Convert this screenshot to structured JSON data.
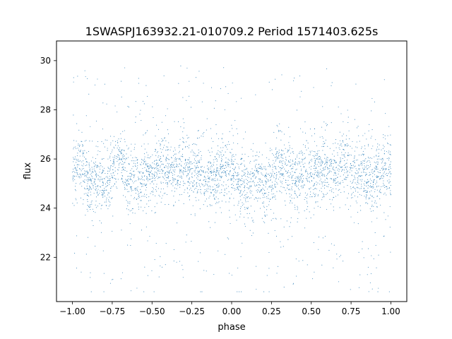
{
  "chart_data": {
    "type": "scatter",
    "title": "1SWASPJ163932.21-010709.2 Period 1571403.625s",
    "xlabel": "phase",
    "ylabel": "flux",
    "xlim": [
      -1.1,
      1.1
    ],
    "ylim": [
      20.2,
      30.8
    ],
    "xticks": [
      -1.0,
      -0.75,
      -0.5,
      -0.25,
      0.0,
      0.25,
      0.5,
      0.75,
      1.0
    ],
    "xtick_labels": [
      "−1.00",
      "−0.75",
      "−0.50",
      "−0.25",
      "0.00",
      "0.25",
      "0.50",
      "0.75",
      "1.00"
    ],
    "yticks": [
      22,
      24,
      26,
      28,
      30
    ],
    "ytick_labels": [
      "22",
      "24",
      "26",
      "28",
      "30"
    ],
    "grid": false,
    "legend": "none",
    "point_color": "#1f77b4",
    "phase_range": [
      -1.0,
      1.0
    ],
    "flux_trend": [
      {
        "phase": -1.0,
        "flux": 25.6
      },
      {
        "phase": -0.95,
        "flux": 25.9
      },
      {
        "phase": -0.9,
        "flux": 25.0
      },
      {
        "phase": -0.85,
        "flux": 25.3
      },
      {
        "phase": -0.8,
        "flux": 24.8
      },
      {
        "phase": -0.75,
        "flux": 25.5
      },
      {
        "phase": -0.7,
        "flux": 26.0
      },
      {
        "phase": -0.65,
        "flux": 25.2
      },
      {
        "phase": -0.6,
        "flux": 25.0
      },
      {
        "phase": -0.55,
        "flux": 25.4
      },
      {
        "phase": -0.5,
        "flux": 25.3
      },
      {
        "phase": -0.45,
        "flux": 25.6
      },
      {
        "phase": -0.4,
        "flux": 25.7
      },
      {
        "phase": -0.35,
        "flux": 25.4
      },
      {
        "phase": -0.3,
        "flux": 25.9
      },
      {
        "phase": -0.25,
        "flux": 25.3
      },
      {
        "phase": -0.2,
        "flux": 25.5
      },
      {
        "phase": -0.15,
        "flux": 25.2
      },
      {
        "phase": -0.1,
        "flux": 25.3
      },
      {
        "phase": -0.05,
        "flux": 25.6
      },
      {
        "phase": 0.0,
        "flux": 25.5
      },
      {
        "phase": 0.05,
        "flux": 25.0
      },
      {
        "phase": 0.1,
        "flux": 24.9
      },
      {
        "phase": 0.15,
        "flux": 25.2
      },
      {
        "phase": 0.2,
        "flux": 24.8
      },
      {
        "phase": 0.25,
        "flux": 25.3
      },
      {
        "phase": 0.3,
        "flux": 25.9
      },
      {
        "phase": 0.35,
        "flux": 25.4
      },
      {
        "phase": 0.4,
        "flux": 25.1
      },
      {
        "phase": 0.45,
        "flux": 25.5
      },
      {
        "phase": 0.5,
        "flux": 25.3
      },
      {
        "phase": 0.55,
        "flux": 25.6
      },
      {
        "phase": 0.6,
        "flux": 25.5
      },
      {
        "phase": 0.65,
        "flux": 25.4
      },
      {
        "phase": 0.7,
        "flux": 26.0
      },
      {
        "phase": 0.75,
        "flux": 25.3
      },
      {
        "phase": 0.8,
        "flux": 25.5
      },
      {
        "phase": 0.85,
        "flux": 25.2
      },
      {
        "phase": 0.9,
        "flux": 25.3
      },
      {
        "phase": 0.95,
        "flux": 25.7
      },
      {
        "phase": 1.0,
        "flux": 25.4
      }
    ],
    "flux_spread": 1.1,
    "flux_extremes": {
      "min": 20.6,
      "max": 30.3
    }
  }
}
